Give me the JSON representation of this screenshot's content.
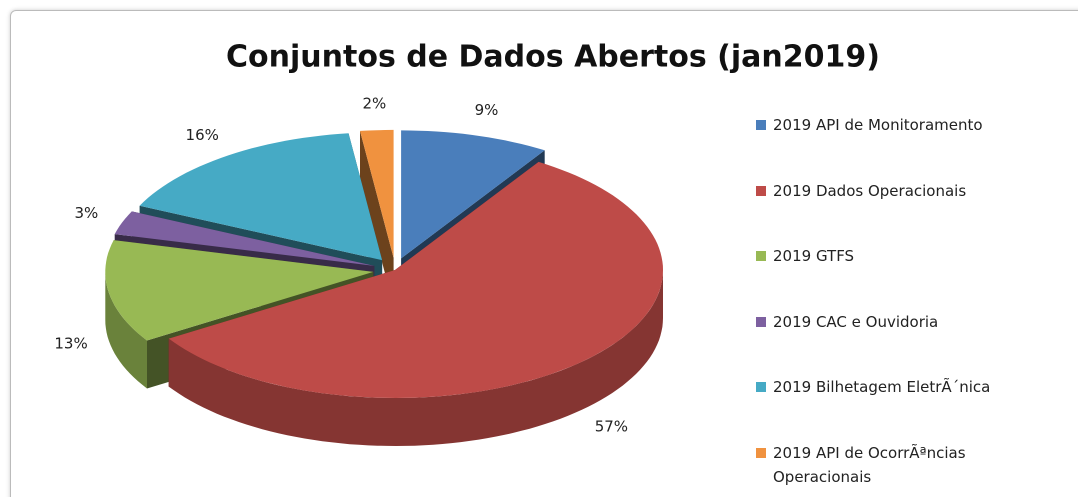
{
  "chart_data": {
    "type": "pie",
    "title": "Conjuntos de Dados Abertos (jan2019)",
    "categories": [
      "2019 API de Monitoramento",
      "2019 Dados Operacionais",
      "2019 GTFS",
      "2019 CAC e Ouvidoria",
      "2019 Bilhetagem EletrÃ´nica",
      "2019 API de OcorrÃªncias Operacionais"
    ],
    "values": [
      9,
      57,
      13,
      3,
      16,
      2
    ],
    "value_labels": [
      "9%",
      "57%",
      "13%",
      "3%",
      "16%",
      "2%"
    ],
    "colors": [
      "#4a7ebb",
      "#be4b48",
      "#98b954",
      "#7d60a0",
      "#46aac5",
      "#f0923f"
    ],
    "legend": "right"
  }
}
